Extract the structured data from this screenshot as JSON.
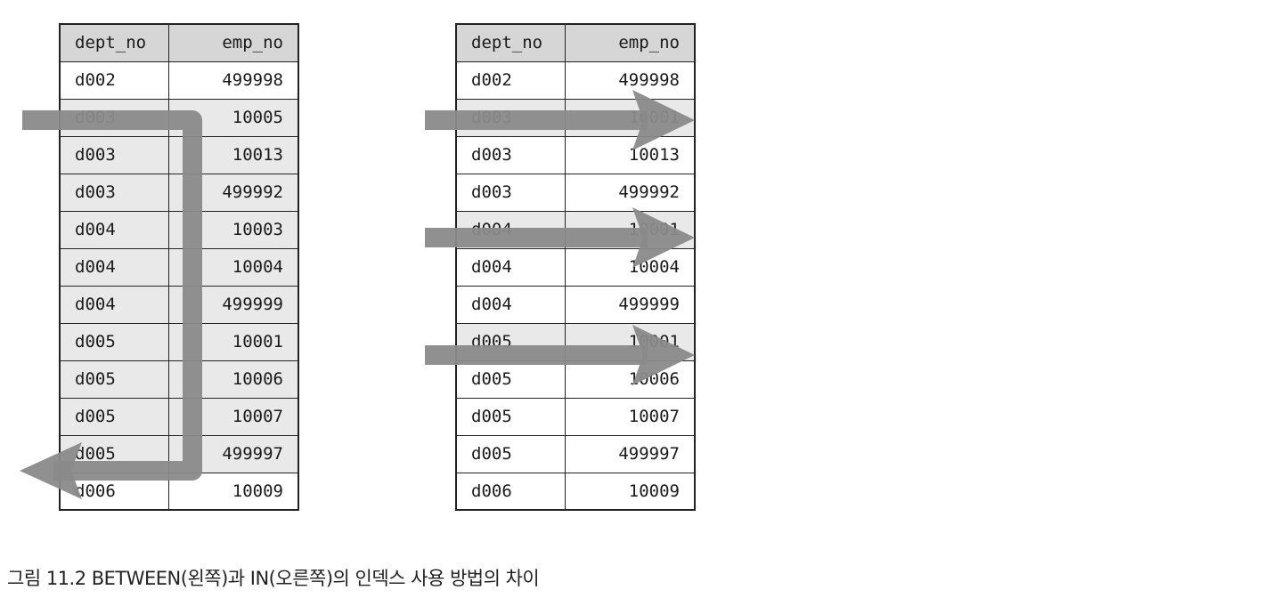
{
  "left_table": {
    "headers": [
      "dept_no",
      "emp_no"
    ],
    "rows": [
      [
        "d002",
        "499998"
      ],
      [
        "d003",
        "10005"
      ],
      [
        "d003",
        "10013"
      ],
      [
        "d003",
        "499992"
      ],
      [
        "d004",
        "10003"
      ],
      [
        "d004",
        "10004"
      ],
      [
        "d004",
        "499999"
      ],
      [
        "d005",
        "10001"
      ],
      [
        "d005",
        "10006"
      ],
      [
        "d005",
        "10007"
      ],
      [
        "d005",
        "499997"
      ],
      [
        "d006",
        "10009"
      ]
    ],
    "scan": "range",
    "scan_start_row": 1,
    "scan_end_row": 10
  },
  "right_table": {
    "headers": [
      "dept_no",
      "emp_no"
    ],
    "rows": [
      [
        "d002",
        "499998"
      ],
      [
        "d003",
        "10001"
      ],
      [
        "d003",
        "10013"
      ],
      [
        "d003",
        "499992"
      ],
      [
        "d004",
        "10001"
      ],
      [
        "d004",
        "10004"
      ],
      [
        "d004",
        "499999"
      ],
      [
        "d005",
        "10001"
      ],
      [
        "d005",
        "10006"
      ],
      [
        "d005",
        "10007"
      ],
      [
        "d005",
        "499997"
      ],
      [
        "d006",
        "10009"
      ]
    ],
    "scan": "point-lookups",
    "lookup_rows": [
      1,
      4,
      7
    ]
  },
  "caption": "그림 11.2 BETWEEN(왼쪽)과 IN(오른쪽)의 인덱스 사용 방법의 차이",
  "colors": {
    "arrow": "#8a8a8a",
    "header_bg": "#d6d6d6",
    "highlight_bg": "#e9e9e9",
    "border": "#222222"
  }
}
